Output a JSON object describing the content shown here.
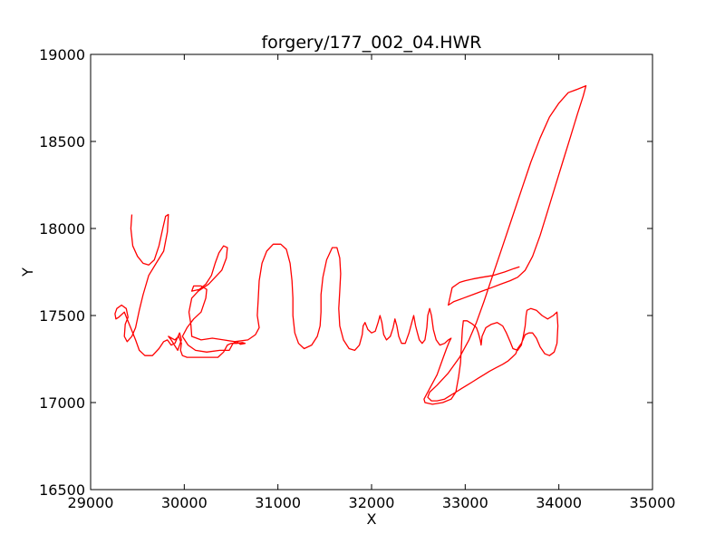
{
  "chart_data": {
    "type": "line",
    "title": "forgery/177_002_04.HWR",
    "xlabel": "X",
    "ylabel": "Y",
    "xlim": [
      29000,
      35000
    ],
    "ylim": [
      16500,
      19000
    ],
    "xticks": [
      29000,
      30000,
      31000,
      32000,
      33000,
      34000,
      35000
    ],
    "yticks": [
      16500,
      17000,
      17500,
      18000,
      18500,
      19000
    ],
    "grid": false,
    "line_color": "#ff0000",
    "series": [
      {
        "points": [
          [
            29440,
            18080
          ],
          [
            29430,
            18000
          ],
          [
            29450,
            17900
          ],
          [
            29500,
            17840
          ],
          [
            29560,
            17800
          ],
          [
            29620,
            17790
          ],
          [
            29680,
            17820
          ],
          [
            29730,
            17900
          ],
          [
            29770,
            18000
          ],
          [
            29800,
            18070
          ],
          [
            29830,
            18080
          ],
          [
            29820,
            17980
          ],
          [
            29780,
            17870
          ],
          [
            29700,
            17800
          ],
          [
            29620,
            17730
          ],
          [
            29560,
            17620
          ],
          [
            29520,
            17530
          ],
          [
            29480,
            17430
          ],
          [
            29440,
            17380
          ],
          [
            29390,
            17350
          ],
          [
            29360,
            17380
          ],
          [
            29370,
            17450
          ],
          [
            29400,
            17490
          ],
          [
            29380,
            17540
          ],
          [
            29330,
            17560
          ],
          [
            29280,
            17540
          ],
          [
            29260,
            17510
          ],
          [
            29270,
            17480
          ],
          [
            29300,
            17490
          ],
          [
            29360,
            17520
          ],
          [
            29420,
            17440
          ],
          [
            29480,
            17360
          ],
          [
            29520,
            17300
          ],
          [
            29580,
            17270
          ],
          [
            29660,
            17270
          ],
          [
            29730,
            17310
          ],
          [
            29780,
            17350
          ],
          [
            29820,
            17360
          ],
          [
            29860,
            17330
          ],
          [
            29900,
            17340
          ],
          [
            29950,
            17400
          ],
          [
            29970,
            17360
          ],
          [
            29930,
            17300
          ],
          [
            29860,
            17360
          ],
          [
            29830,
            17380
          ],
          [
            29900,
            17360
          ],
          [
            29940,
            17380
          ],
          [
            29970,
            17340
          ],
          [
            29960,
            17300
          ],
          [
            29980,
            17270
          ],
          [
            30030,
            17260
          ],
          [
            30150,
            17260
          ],
          [
            30280,
            17260
          ],
          [
            30360,
            17260
          ],
          [
            30420,
            17290
          ],
          [
            30460,
            17330
          ],
          [
            30500,
            17340
          ],
          [
            30560,
            17340
          ],
          [
            30620,
            17345
          ],
          [
            30650,
            17340
          ],
          [
            30600,
            17335
          ],
          [
            30560,
            17350
          ],
          [
            30520,
            17340
          ],
          [
            30480,
            17300
          ],
          [
            30380,
            17300
          ],
          [
            30240,
            17290
          ],
          [
            30120,
            17300
          ],
          [
            30040,
            17330
          ],
          [
            29980,
            17380
          ],
          [
            30030,
            17430
          ],
          [
            30100,
            17480
          ],
          [
            30180,
            17520
          ],
          [
            30230,
            17600
          ],
          [
            30240,
            17650
          ],
          [
            30180,
            17670
          ],
          [
            30100,
            17670
          ],
          [
            30080,
            17640
          ],
          [
            30160,
            17650
          ],
          [
            30230,
            17680
          ],
          [
            30290,
            17730
          ],
          [
            30330,
            17800
          ],
          [
            30370,
            17860
          ],
          [
            30420,
            17900
          ],
          [
            30460,
            17890
          ],
          [
            30450,
            17830
          ],
          [
            30400,
            17760
          ],
          [
            30330,
            17720
          ],
          [
            30260,
            17680
          ],
          [
            30150,
            17640
          ],
          [
            30080,
            17600
          ],
          [
            30050,
            17520
          ],
          [
            30070,
            17450
          ],
          [
            30080,
            17380
          ],
          [
            30180,
            17360
          ],
          [
            30300,
            17370
          ],
          [
            30420,
            17360
          ],
          [
            30540,
            17350
          ],
          [
            30680,
            17360
          ],
          [
            30760,
            17390
          ],
          [
            30800,
            17430
          ],
          [
            30780,
            17500
          ],
          [
            30790,
            17600
          ],
          [
            30800,
            17700
          ],
          [
            30830,
            17800
          ],
          [
            30880,
            17870
          ],
          [
            30950,
            17910
          ],
          [
            31030,
            17910
          ],
          [
            31090,
            17880
          ],
          [
            31130,
            17800
          ],
          [
            31150,
            17700
          ],
          [
            31160,
            17600
          ],
          [
            31160,
            17500
          ],
          [
            31180,
            17400
          ],
          [
            31220,
            17340
          ],
          [
            31280,
            17310
          ],
          [
            31360,
            17330
          ],
          [
            31420,
            17380
          ],
          [
            31450,
            17440
          ],
          [
            31460,
            17520
          ],
          [
            31460,
            17620
          ],
          [
            31480,
            17720
          ],
          [
            31520,
            17820
          ],
          [
            31580,
            17890
          ],
          [
            31630,
            17890
          ],
          [
            31660,
            17830
          ],
          [
            31670,
            17740
          ],
          [
            31660,
            17640
          ],
          [
            31650,
            17540
          ],
          [
            31660,
            17440
          ],
          [
            31700,
            17360
          ],
          [
            31760,
            17310
          ],
          [
            31820,
            17300
          ],
          [
            31870,
            17330
          ],
          [
            31900,
            17390
          ],
          [
            31910,
            17440
          ],
          [
            31930,
            17460
          ],
          [
            31960,
            17420
          ],
          [
            32000,
            17400
          ],
          [
            32040,
            17410
          ],
          [
            32070,
            17460
          ],
          [
            32090,
            17500
          ],
          [
            32110,
            17460
          ],
          [
            32130,
            17390
          ],
          [
            32160,
            17360
          ],
          [
            32200,
            17380
          ],
          [
            32230,
            17430
          ],
          [
            32250,
            17480
          ],
          [
            32270,
            17440
          ],
          [
            32290,
            17380
          ],
          [
            32320,
            17340
          ],
          [
            32360,
            17340
          ],
          [
            32400,
            17400
          ],
          [
            32430,
            17460
          ],
          [
            32450,
            17500
          ],
          [
            32470,
            17440
          ],
          [
            32490,
            17400
          ],
          [
            32510,
            17360
          ],
          [
            32540,
            17340
          ],
          [
            32570,
            17360
          ],
          [
            32590,
            17430
          ],
          [
            32600,
            17500
          ],
          [
            32620,
            17540
          ],
          [
            32640,
            17500
          ],
          [
            32660,
            17420
          ],
          [
            32690,
            17360
          ],
          [
            32730,
            17330
          ],
          [
            32780,
            17340
          ],
          [
            32820,
            17360
          ],
          [
            32850,
            17370
          ],
          [
            32830,
            17350
          ],
          [
            32800,
            17310
          ],
          [
            32760,
            17250
          ],
          [
            32700,
            17160
          ],
          [
            32620,
            17080
          ],
          [
            32560,
            17020
          ],
          [
            32570,
            17000
          ],
          [
            32650,
            16990
          ],
          [
            32760,
            17000
          ],
          [
            32850,
            17020
          ],
          [
            32900,
            17060
          ],
          [
            32930,
            17150
          ],
          [
            32950,
            17230
          ],
          [
            32960,
            17330
          ],
          [
            32970,
            17420
          ],
          [
            32980,
            17470
          ],
          [
            33020,
            17470
          ],
          [
            33080,
            17450
          ],
          [
            33120,
            17430
          ],
          [
            33140,
            17400
          ],
          [
            33160,
            17360
          ],
          [
            33170,
            17330
          ],
          [
            33180,
            17380
          ],
          [
            33220,
            17430
          ],
          [
            33280,
            17450
          ],
          [
            33340,
            17460
          ],
          [
            33400,
            17440
          ],
          [
            33440,
            17400
          ],
          [
            33480,
            17350
          ],
          [
            33510,
            17310
          ],
          [
            33560,
            17300
          ],
          [
            33600,
            17330
          ],
          [
            33620,
            17380
          ],
          [
            33640,
            17440
          ],
          [
            33650,
            17500
          ],
          [
            33660,
            17530
          ],
          [
            33700,
            17540
          ],
          [
            33760,
            17530
          ],
          [
            33820,
            17500
          ],
          [
            33880,
            17480
          ],
          [
            33940,
            17500
          ],
          [
            33980,
            17520
          ],
          [
            33990,
            17440
          ],
          [
            33980,
            17340
          ],
          [
            33950,
            17290
          ],
          [
            33900,
            17270
          ],
          [
            33850,
            17280
          ],
          [
            33800,
            17320
          ],
          [
            33760,
            17370
          ],
          [
            33720,
            17400
          ],
          [
            33680,
            17400
          ],
          [
            33640,
            17390
          ],
          [
            33600,
            17340
          ],
          [
            33560,
            17310
          ],
          [
            33540,
            17280
          ],
          [
            33500,
            17260
          ],
          [
            33460,
            17240
          ],
          [
            33400,
            17220
          ],
          [
            33330,
            17200
          ],
          [
            33260,
            17180
          ],
          [
            33200,
            17160
          ],
          [
            33140,
            17140
          ],
          [
            33080,
            17120
          ],
          [
            33020,
            17100
          ],
          [
            32960,
            17080
          ],
          [
            32900,
            17060
          ],
          [
            32840,
            17040
          ],
          [
            32780,
            17020
          ],
          [
            32700,
            17010
          ],
          [
            32640,
            17010
          ],
          [
            32600,
            17030
          ],
          [
            32620,
            17060
          ],
          [
            32700,
            17100
          ],
          [
            32820,
            17170
          ],
          [
            32940,
            17260
          ],
          [
            33040,
            17360
          ],
          [
            33120,
            17460
          ],
          [
            33200,
            17580
          ],
          [
            33300,
            17740
          ],
          [
            33400,
            17900
          ],
          [
            33500,
            18060
          ],
          [
            33600,
            18220
          ],
          [
            33700,
            18380
          ],
          [
            33800,
            18520
          ],
          [
            33900,
            18640
          ],
          [
            34000,
            18720
          ],
          [
            34100,
            18780
          ],
          [
            34200,
            18800
          ],
          [
            34290,
            18820
          ],
          [
            34260,
            18760
          ],
          [
            34200,
            18660
          ],
          [
            34120,
            18520
          ],
          [
            34040,
            18380
          ],
          [
            33960,
            18240
          ],
          [
            33880,
            18100
          ],
          [
            33800,
            17960
          ],
          [
            33720,
            17840
          ],
          [
            33640,
            17760
          ],
          [
            33560,
            17720
          ],
          [
            33480,
            17700
          ],
          [
            33380,
            17680
          ],
          [
            33280,
            17660
          ],
          [
            33180,
            17640
          ],
          [
            33080,
            17620
          ],
          [
            32980,
            17600
          ],
          [
            32880,
            17580
          ],
          [
            32820,
            17560
          ],
          [
            32860,
            17660
          ],
          [
            32940,
            17690
          ],
          [
            33000,
            17700
          ],
          [
            33080,
            17710
          ],
          [
            33180,
            17720
          ],
          [
            33300,
            17730
          ],
          [
            33420,
            17750
          ],
          [
            33520,
            17770
          ],
          [
            33580,
            17780
          ]
        ]
      }
    ]
  }
}
